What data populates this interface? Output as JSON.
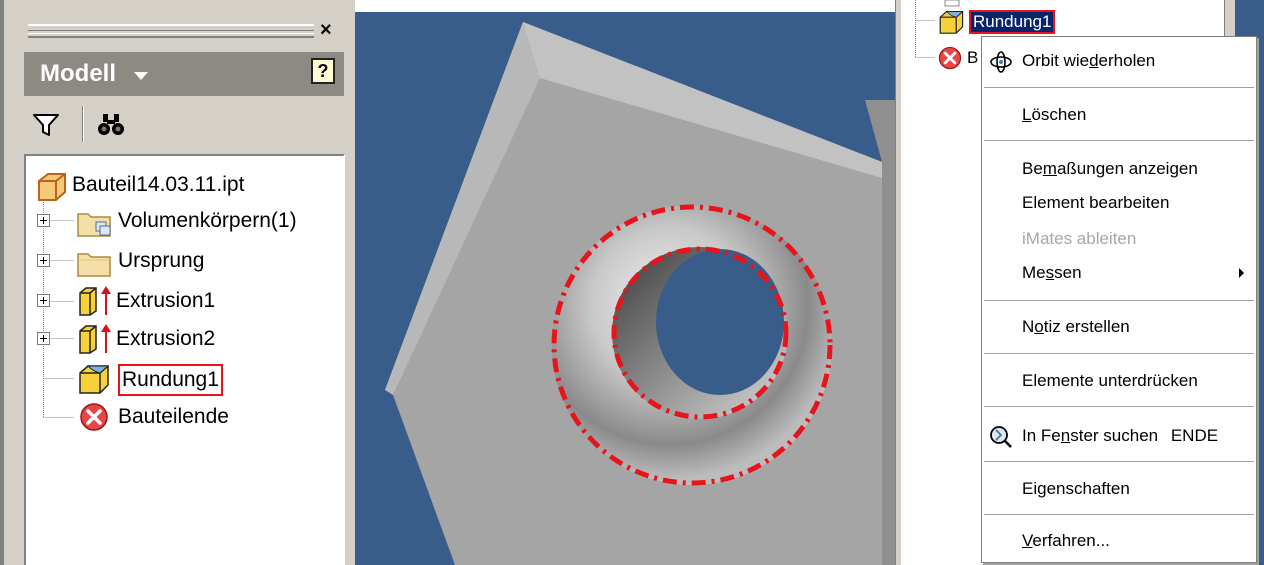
{
  "panel": {
    "title": "Modell",
    "close_glyph": "×",
    "help_glyph": "?",
    "icons": {
      "filter": "filter-icon",
      "find": "binoculars-icon",
      "close": "close-icon",
      "help": "help-icon"
    }
  },
  "tree": {
    "root": "Bauteil14.03.11.ipt",
    "items": [
      {
        "label": "Volumenkörpern(1)",
        "icon": "solid-bodies-folder-icon",
        "expandable": true
      },
      {
        "label": "Ursprung",
        "icon": "folder-icon",
        "expandable": true
      },
      {
        "label": "Extrusion1",
        "icon": "extrusion-icon",
        "expandable": true
      },
      {
        "label": "Extrusion2",
        "icon": "extrusion-icon",
        "expandable": true
      },
      {
        "label": "Rundung1",
        "icon": "fillet-icon",
        "expandable": false,
        "highlighted": true
      },
      {
        "label": "Bauteilende",
        "icon": "end-of-part-icon",
        "expandable": false
      }
    ]
  },
  "right_tree": {
    "selected_label": "Rundung1",
    "partial_label": "B"
  },
  "context_menu": {
    "items": [
      {
        "pre": "Orbit wie",
        "ul": "d",
        "post": "erholen",
        "icon": "orbit-icon"
      },
      {
        "pre": "",
        "ul": "L",
        "post": "öschen"
      },
      {
        "pre": "Be",
        "ul": "m",
        "post": "aßungen anzeigen"
      },
      {
        "pre": "Element bearbeiten",
        "ul": "",
        "post": ""
      },
      {
        "pre": "iMates ableiten",
        "ul": "",
        "post": "",
        "disabled": true
      },
      {
        "pre": "Me",
        "ul": "s",
        "post": "sen",
        "submenu": true
      },
      {
        "pre": "N",
        "ul": "o",
        "post": "tiz erstellen"
      },
      {
        "pre": "Elemente unterdrücken",
        "ul": "",
        "post": ""
      },
      {
        "pre": "In Fe",
        "ul": "n",
        "post": "ster suchen",
        "shortcut": "ENDE",
        "icon": "find-in-window-icon"
      },
      {
        "pre": "Ei",
        "ul": "g",
        "post": "enschaften"
      },
      {
        "pre": "",
        "ul": "V",
        "post": "erfahren..."
      }
    ]
  },
  "colors": {
    "highlight_red": "#e8141c",
    "viewport_blue": "#385d8a",
    "panel_gray": "#d4d0c8",
    "title_gray": "#8c8a82",
    "selection_blue": "#0a246a"
  }
}
